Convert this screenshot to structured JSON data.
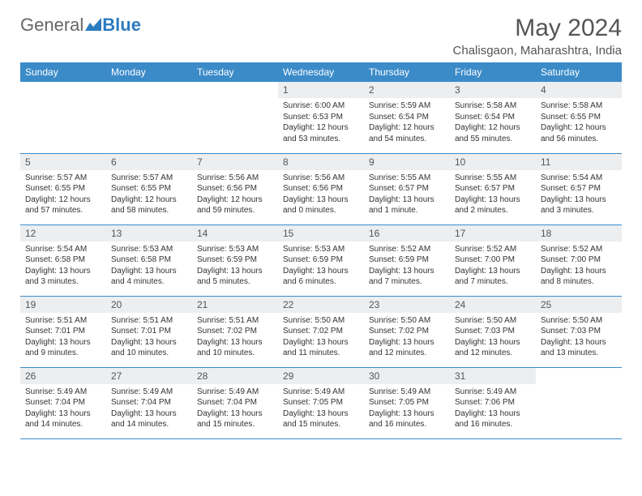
{
  "brand": {
    "part1": "General",
    "part2": "Blue",
    "color1": "#666666",
    "color2": "#2b7bbf"
  },
  "title": "May 2024",
  "location": "Chalisgaon, Maharashtra, India",
  "header_bg": "#3b8bc9",
  "daynum_bg": "#eceef0",
  "border_color": "#3b8bc9",
  "weekdays": [
    "Sunday",
    "Monday",
    "Tuesday",
    "Wednesday",
    "Thursday",
    "Friday",
    "Saturday"
  ],
  "weeks": [
    [
      null,
      null,
      null,
      {
        "d": "1",
        "sr": "6:00 AM",
        "ss": "6:53 PM",
        "dl": "12 hours and 53 minutes."
      },
      {
        "d": "2",
        "sr": "5:59 AM",
        "ss": "6:54 PM",
        "dl": "12 hours and 54 minutes."
      },
      {
        "d": "3",
        "sr": "5:58 AM",
        "ss": "6:54 PM",
        "dl": "12 hours and 55 minutes."
      },
      {
        "d": "4",
        "sr": "5:58 AM",
        "ss": "6:55 PM",
        "dl": "12 hours and 56 minutes."
      }
    ],
    [
      {
        "d": "5",
        "sr": "5:57 AM",
        "ss": "6:55 PM",
        "dl": "12 hours and 57 minutes."
      },
      {
        "d": "6",
        "sr": "5:57 AM",
        "ss": "6:55 PM",
        "dl": "12 hours and 58 minutes."
      },
      {
        "d": "7",
        "sr": "5:56 AM",
        "ss": "6:56 PM",
        "dl": "12 hours and 59 minutes."
      },
      {
        "d": "8",
        "sr": "5:56 AM",
        "ss": "6:56 PM",
        "dl": "13 hours and 0 minutes."
      },
      {
        "d": "9",
        "sr": "5:55 AM",
        "ss": "6:57 PM",
        "dl": "13 hours and 1 minute."
      },
      {
        "d": "10",
        "sr": "5:55 AM",
        "ss": "6:57 PM",
        "dl": "13 hours and 2 minutes."
      },
      {
        "d": "11",
        "sr": "5:54 AM",
        "ss": "6:57 PM",
        "dl": "13 hours and 3 minutes."
      }
    ],
    [
      {
        "d": "12",
        "sr": "5:54 AM",
        "ss": "6:58 PM",
        "dl": "13 hours and 3 minutes."
      },
      {
        "d": "13",
        "sr": "5:53 AM",
        "ss": "6:58 PM",
        "dl": "13 hours and 4 minutes."
      },
      {
        "d": "14",
        "sr": "5:53 AM",
        "ss": "6:59 PM",
        "dl": "13 hours and 5 minutes."
      },
      {
        "d": "15",
        "sr": "5:53 AM",
        "ss": "6:59 PM",
        "dl": "13 hours and 6 minutes."
      },
      {
        "d": "16",
        "sr": "5:52 AM",
        "ss": "6:59 PM",
        "dl": "13 hours and 7 minutes."
      },
      {
        "d": "17",
        "sr": "5:52 AM",
        "ss": "7:00 PM",
        "dl": "13 hours and 7 minutes."
      },
      {
        "d": "18",
        "sr": "5:52 AM",
        "ss": "7:00 PM",
        "dl": "13 hours and 8 minutes."
      }
    ],
    [
      {
        "d": "19",
        "sr": "5:51 AM",
        "ss": "7:01 PM",
        "dl": "13 hours and 9 minutes."
      },
      {
        "d": "20",
        "sr": "5:51 AM",
        "ss": "7:01 PM",
        "dl": "13 hours and 10 minutes."
      },
      {
        "d": "21",
        "sr": "5:51 AM",
        "ss": "7:02 PM",
        "dl": "13 hours and 10 minutes."
      },
      {
        "d": "22",
        "sr": "5:50 AM",
        "ss": "7:02 PM",
        "dl": "13 hours and 11 minutes."
      },
      {
        "d": "23",
        "sr": "5:50 AM",
        "ss": "7:02 PM",
        "dl": "13 hours and 12 minutes."
      },
      {
        "d": "24",
        "sr": "5:50 AM",
        "ss": "7:03 PM",
        "dl": "13 hours and 12 minutes."
      },
      {
        "d": "25",
        "sr": "5:50 AM",
        "ss": "7:03 PM",
        "dl": "13 hours and 13 minutes."
      }
    ],
    [
      {
        "d": "26",
        "sr": "5:49 AM",
        "ss": "7:04 PM",
        "dl": "13 hours and 14 minutes."
      },
      {
        "d": "27",
        "sr": "5:49 AM",
        "ss": "7:04 PM",
        "dl": "13 hours and 14 minutes."
      },
      {
        "d": "28",
        "sr": "5:49 AM",
        "ss": "7:04 PM",
        "dl": "13 hours and 15 minutes."
      },
      {
        "d": "29",
        "sr": "5:49 AM",
        "ss": "7:05 PM",
        "dl": "13 hours and 15 minutes."
      },
      {
        "d": "30",
        "sr": "5:49 AM",
        "ss": "7:05 PM",
        "dl": "13 hours and 16 minutes."
      },
      {
        "d": "31",
        "sr": "5:49 AM",
        "ss": "7:06 PM",
        "dl": "13 hours and 16 minutes."
      },
      null
    ]
  ],
  "labels": {
    "sunrise": "Sunrise:",
    "sunset": "Sunset:",
    "daylight": "Daylight:"
  }
}
